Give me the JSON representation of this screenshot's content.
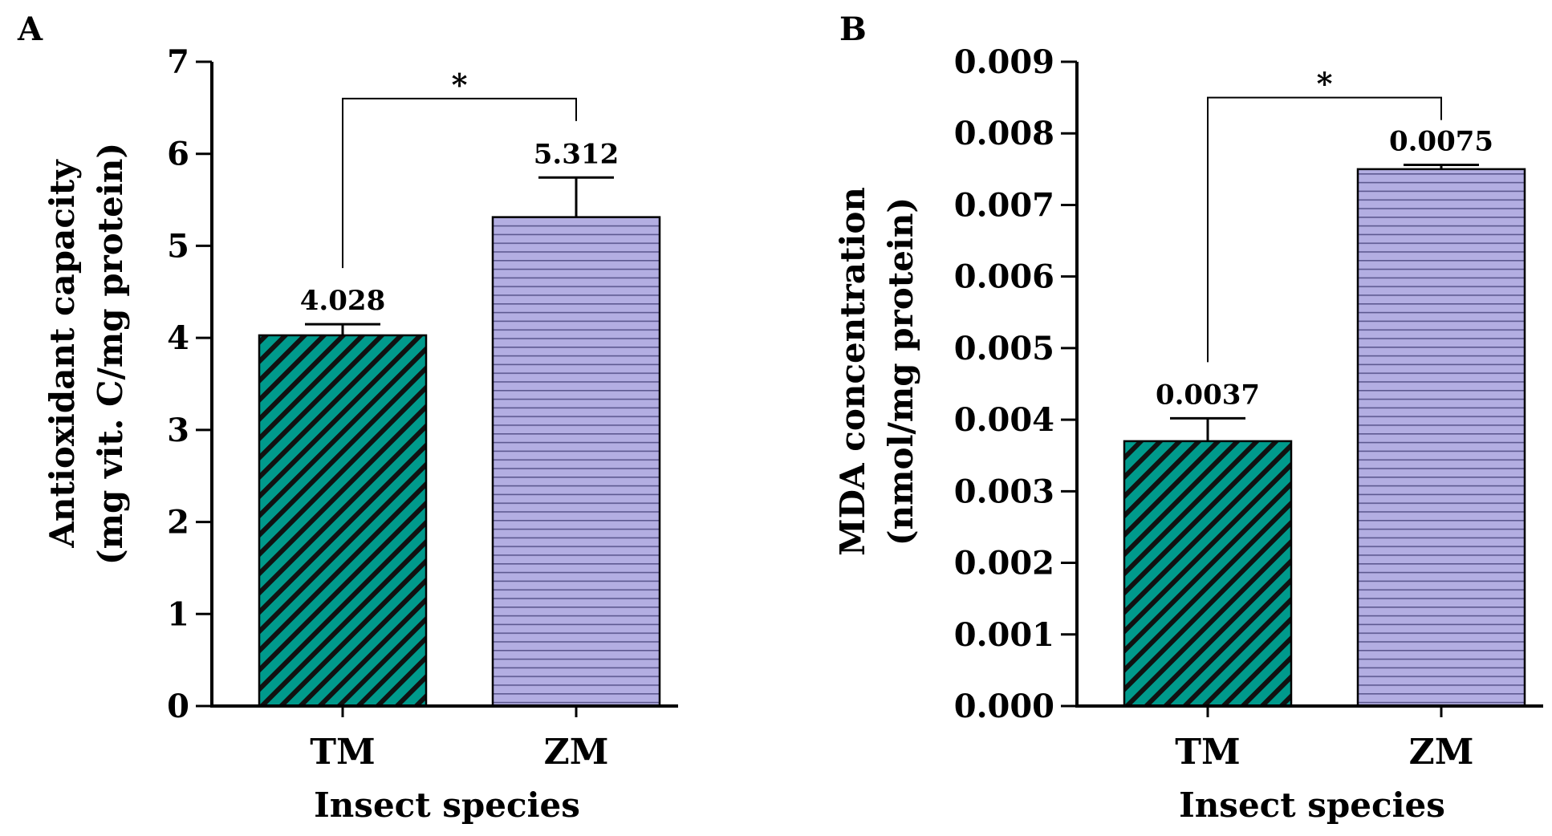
{
  "chart_data": [
    {
      "type": "bar",
      "panel": "A",
      "categories": [
        "TM",
        "ZM"
      ],
      "values": [
        4.028,
        5.312
      ],
      "errors": [
        0.12,
        0.43
      ],
      "value_labels": [
        "4.028",
        "5.312"
      ],
      "xlabel": "Insect species",
      "ylabel_lines": [
        "Antioxidant capacity",
        "(mg vit. C/mg protein)"
      ],
      "ylim": [
        0,
        7
      ],
      "yticks": [
        0,
        1,
        2,
        3,
        4,
        5,
        6,
        7
      ],
      "ytick_labels": [
        "0",
        "1",
        "2",
        "3",
        "4",
        "5",
        "6",
        "7"
      ],
      "significance": {
        "between": [
          "TM",
          "ZM"
        ],
        "label": "*",
        "level": 6.6
      },
      "bar_styles": [
        {
          "pattern": "diagonal-stripes",
          "fill": "#009a8c",
          "stripe": "#111111"
        },
        {
          "pattern": "horizontal-lines",
          "fill": "#b3aee2",
          "stripe": "#5d5990"
        }
      ],
      "grid": false
    },
    {
      "type": "bar",
      "panel": "B",
      "categories": [
        "TM",
        "ZM"
      ],
      "values": [
        0.0037,
        0.0075
      ],
      "errors": [
        0.00032,
        6e-05
      ],
      "value_labels": [
        "0.0037",
        "0.0075"
      ],
      "xlabel": "Insect species",
      "ylabel_lines": [
        "MDA concentration",
        "(nmol/mg protein)"
      ],
      "ylim": [
        0,
        0.009
      ],
      "yticks": [
        0,
        0.001,
        0.002,
        0.003,
        0.004,
        0.005,
        0.006,
        0.007,
        0.008,
        0.009
      ],
      "ytick_labels": [
        "0.000",
        "0.001",
        "0.002",
        "0.003",
        "0.004",
        "0.005",
        "0.006",
        "0.007",
        "0.008",
        "0.009"
      ],
      "significance": {
        "between": [
          "TM",
          "ZM"
        ],
        "label": "*",
        "level": 0.0085
      },
      "bar_styles": [
        {
          "pattern": "diagonal-stripes",
          "fill": "#009a8c",
          "stripe": "#111111"
        },
        {
          "pattern": "horizontal-lines",
          "fill": "#b3aee2",
          "stripe": "#5d5990"
        }
      ],
      "grid": false
    }
  ]
}
